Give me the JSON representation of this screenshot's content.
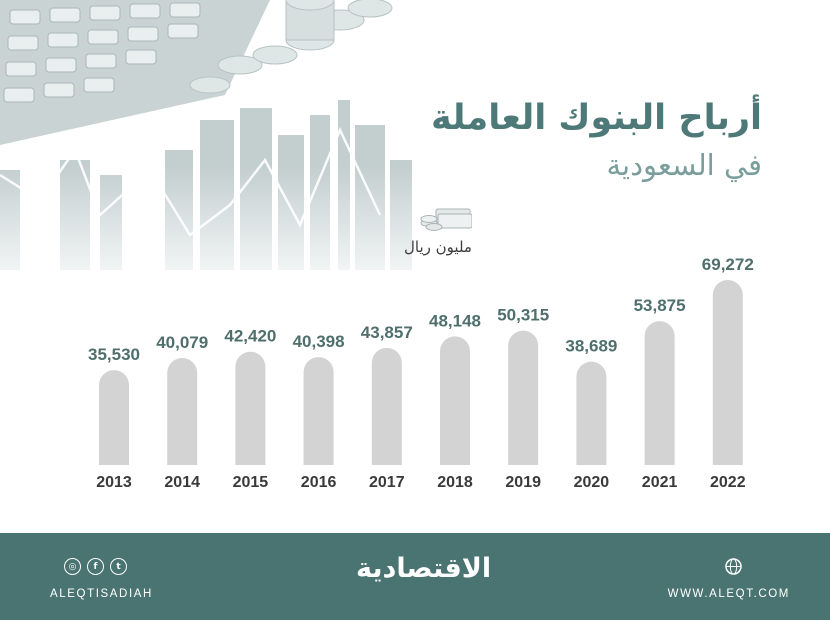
{
  "header": {
    "title": "أرباح البنوك العاملة",
    "subtitle": "في السعودية",
    "unit": "مليون ريال"
  },
  "chart_data": {
    "type": "bar",
    "categories": [
      "2013",
      "2014",
      "2015",
      "2016",
      "2017",
      "2018",
      "2019",
      "2020",
      "2021",
      "2022"
    ],
    "values": [
      35530,
      40079,
      42420,
      40398,
      43857,
      48148,
      50315,
      38689,
      53875,
      69272
    ],
    "value_labels": [
      "35,530",
      "40,079",
      "42,420",
      "40,398",
      "43,857",
      "48,148",
      "50,315",
      "38,689",
      "53,875",
      "69,272"
    ],
    "title": "أرباح البنوك العاملة في السعودية",
    "ylabel": "مليون ريال",
    "ylim": [
      0,
      75000
    ],
    "grid": false,
    "bar_color": "#d3d3d3",
    "value_label_color": "#4f6f6d",
    "category_label_color": "#3a3a3a"
  },
  "footer": {
    "logo": "الاقتصادية",
    "handle": "ALEQTISADIAH",
    "website": "WWW.ALEQT.COM",
    "background_color": "#4a7472",
    "social_icons": [
      "instagram-icon",
      "facebook-icon",
      "twitter-icon"
    ]
  },
  "colors": {
    "title": "#4d7a78",
    "subtitle": "#7a9e9c"
  }
}
